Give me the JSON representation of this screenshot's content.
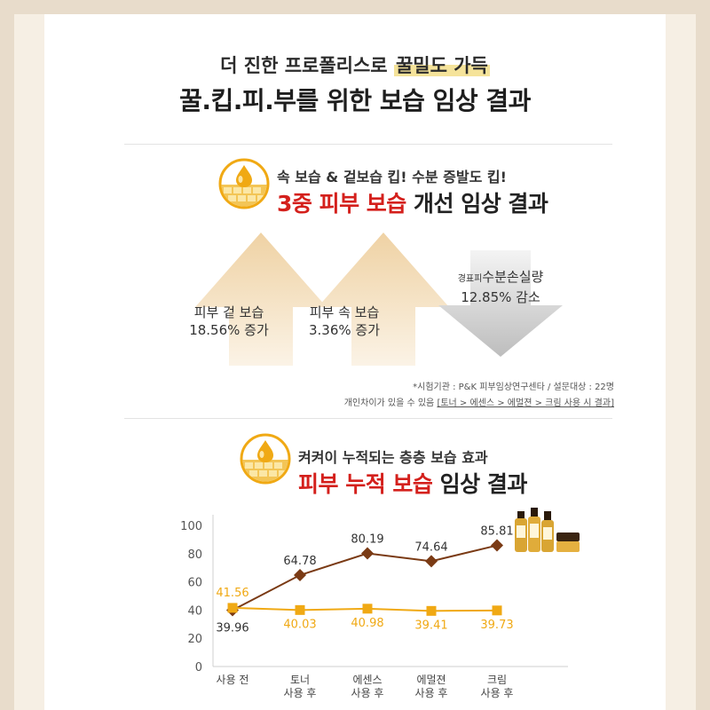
{
  "header": {
    "subtitle_pre": "더 진한 프로폴리스로 ",
    "subtitle_highlight": "꿀밀도 가득",
    "title": "꿀.킵.피.부를 위한 보습 임상 결과"
  },
  "section1": {
    "subtitle": "속 보습 & 겉보습 킵! 수분 증발도 킵!",
    "title_red": "3중 피부 보습",
    "title_rest": " 개선 임상 결과",
    "arrows": [
      {
        "line1": "피부 겉 보습",
        "line2": "18.56% 증가",
        "direction": "up"
      },
      {
        "line1": "피부 속 보습",
        "line2": "3.36% 증가",
        "direction": "up"
      },
      {
        "line1_small": "경표피",
        "line1": "수분손실량",
        "line2": "12.85% 감소",
        "direction": "down"
      }
    ],
    "note1": "*시험기관 : P&K 피부임상연구센타 / 설문대상 : 22명",
    "note2_pre": "개인차이가 있을 수 있음 ",
    "note2_u": "[토너 > 에센스 > 에멀젼 > 크림 사용 시 결과]"
  },
  "section2": {
    "subtitle": "켜켜이 누적되는 층층 보습 효과",
    "title_red": "피부 누적 보습",
    "title_rest": " 임상 결과"
  },
  "colors": {
    "accent_red": "#d4201c",
    "brown_series": "#7a3a14",
    "orange_series": "#f0a914",
    "up_arrow": "#f2dcb8",
    "down_arrow": "#cfcfcf"
  },
  "chart_data": {
    "type": "line",
    "categories": [
      [
        "사용 전"
      ],
      [
        "토너",
        "사용 후"
      ],
      [
        "에센스",
        "사용 후"
      ],
      [
        "에멀젼",
        "사용 후"
      ],
      [
        "크림",
        "사용 후"
      ]
    ],
    "ylim": [
      0,
      100
    ],
    "yticks": [
      0,
      20,
      40,
      60,
      80,
      100
    ],
    "series": [
      {
        "values": [
          39.96,
          64.78,
          80.19,
          74.64,
          85.81
        ],
        "color": "#7a3a14",
        "marker": "diamond",
        "labels": [
          "39.96",
          "64.78",
          "80.19",
          "74.64",
          "85.81"
        ]
      },
      {
        "values": [
          41.56,
          40.03,
          40.98,
          39.41,
          39.73
        ],
        "color": "#f0a914",
        "marker": "square",
        "labels": [
          "41.56",
          "40.03",
          "40.98",
          "39.41",
          "39.73"
        ]
      }
    ],
    "grid": false,
    "legend": "none"
  }
}
